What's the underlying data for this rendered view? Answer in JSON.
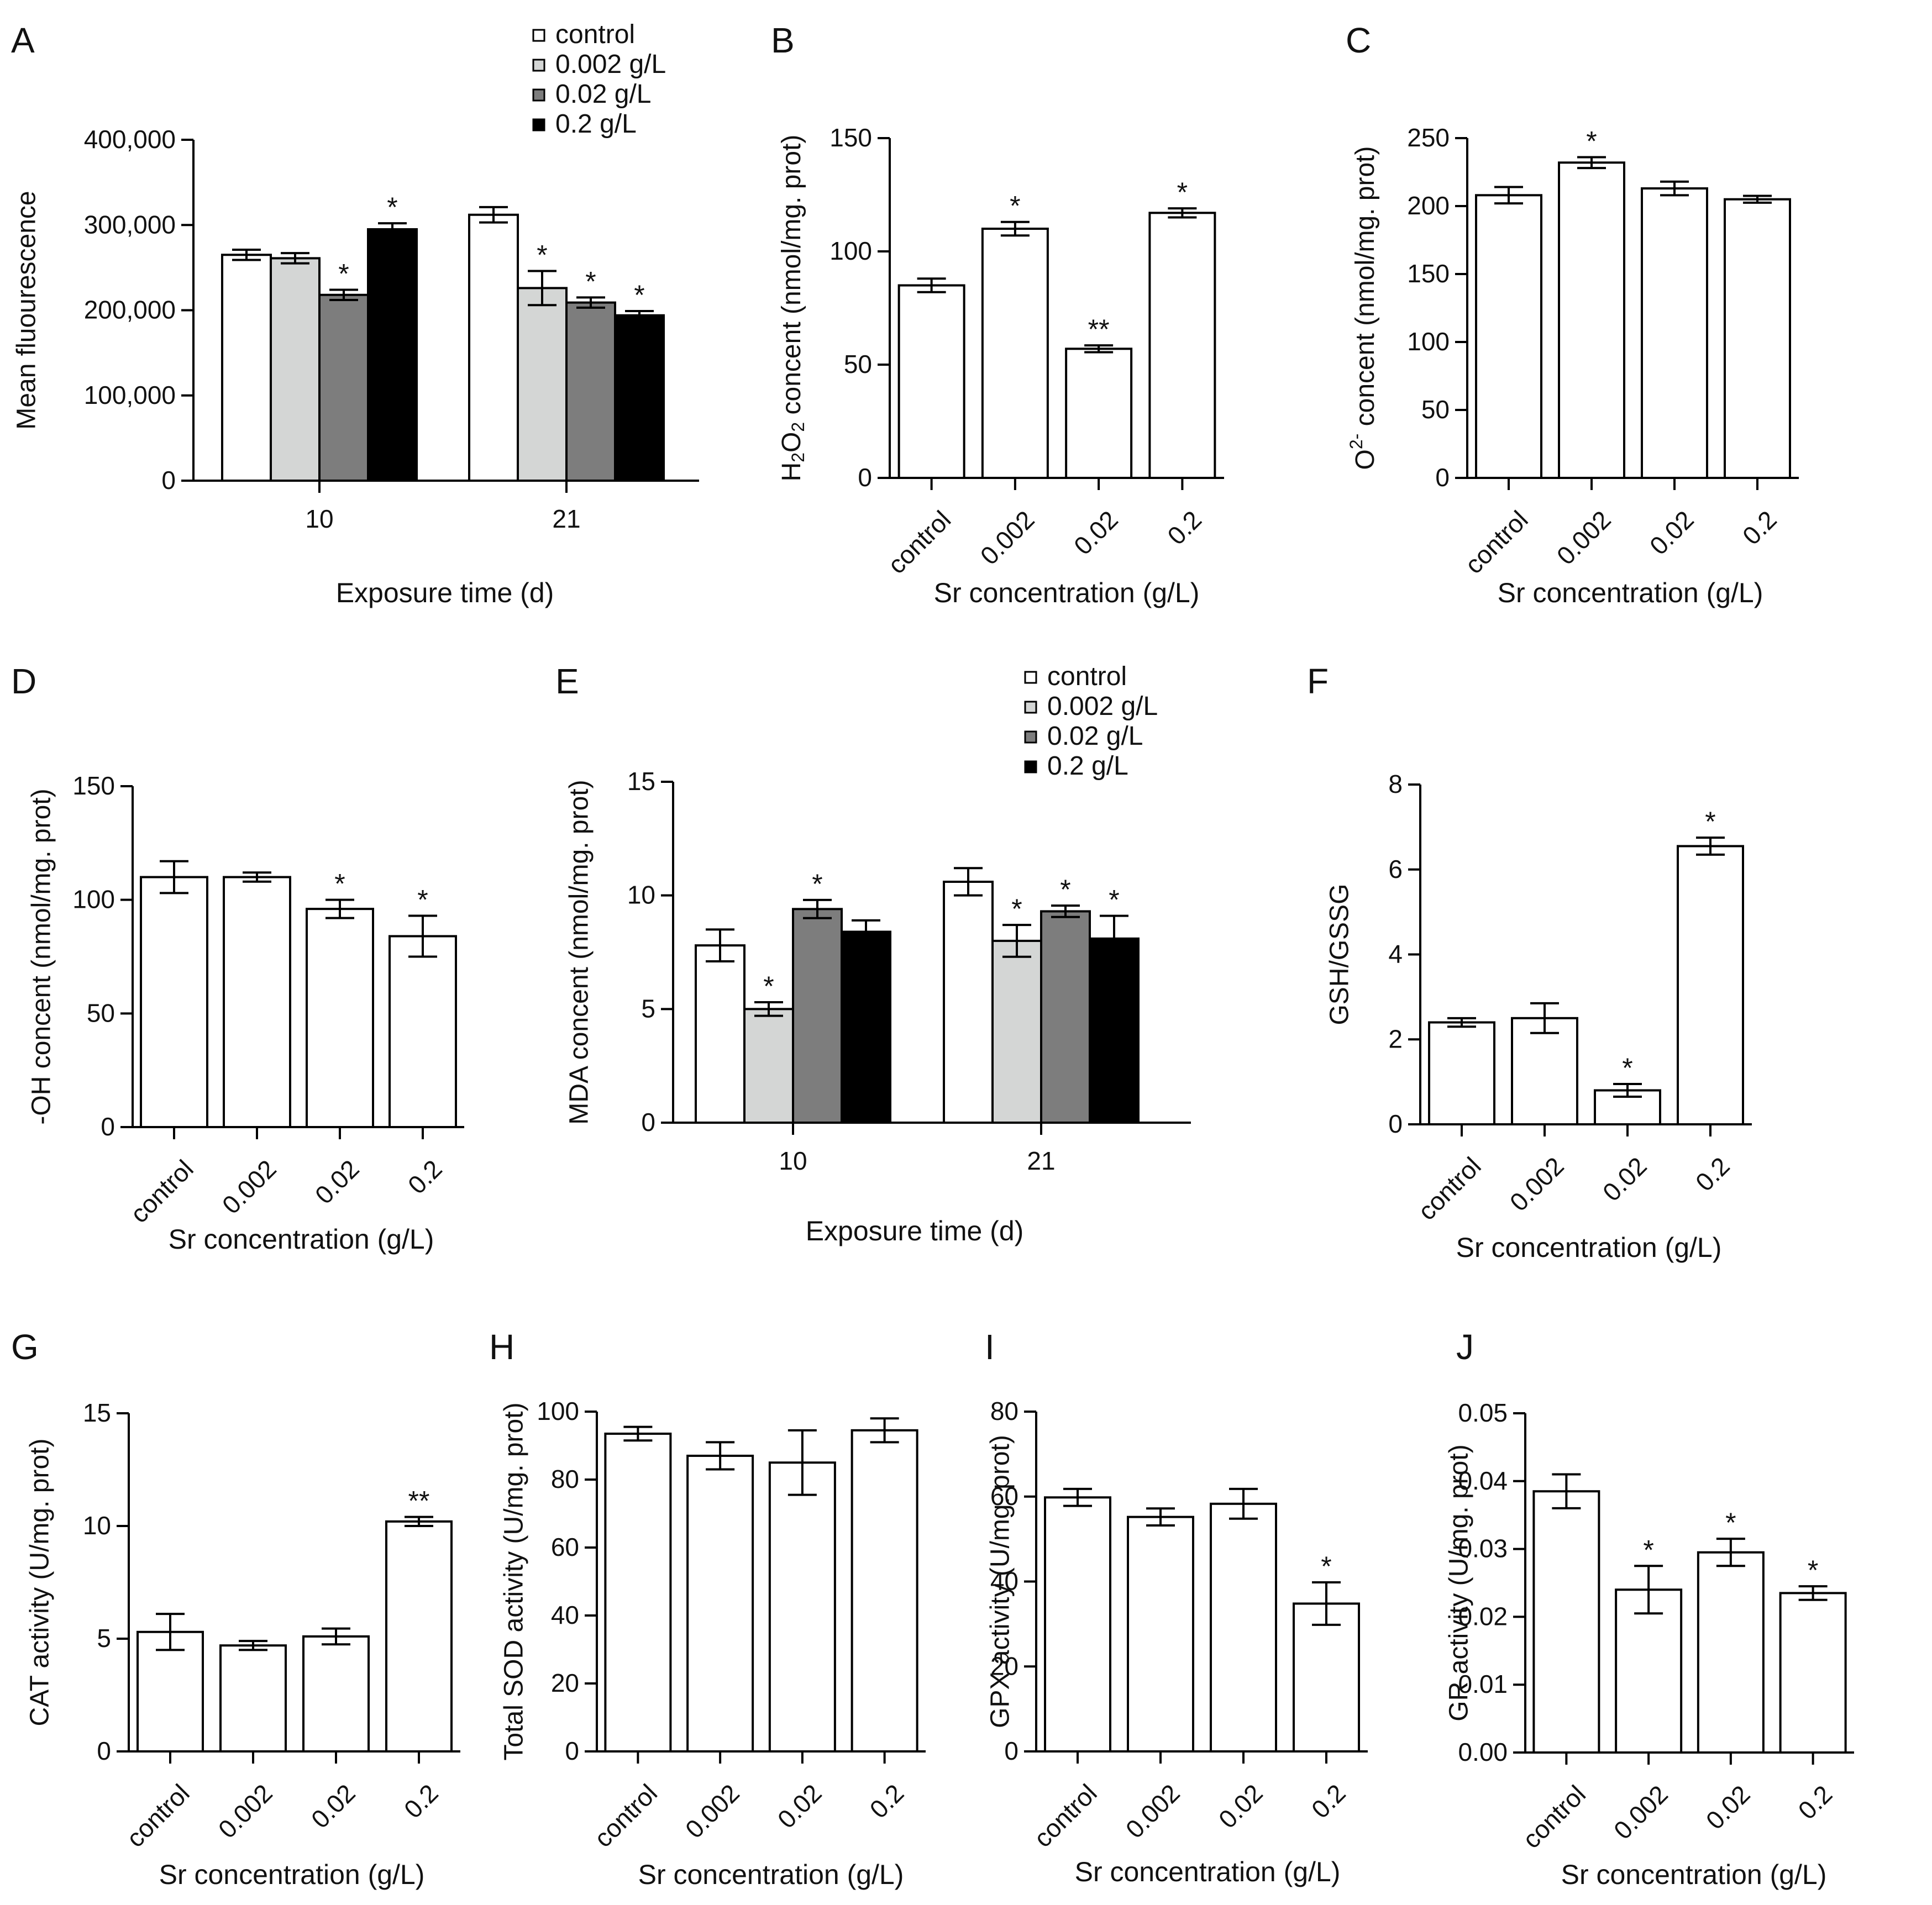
{
  "figure": {
    "colors": {
      "control": "#ffffff",
      "g0002": "#d4d6d5",
      "g002": "#7d7d7d",
      "g02": "#000000",
      "stroke": "#000000",
      "text": "#111111"
    }
  },
  "chart_data": [
    {
      "id": "A",
      "letter": "A",
      "type": "bar",
      "grouped": true,
      "title": "",
      "xlabel": "Exposure time (d)",
      "ylabel": "Mean fluourescence",
      "ylim": [
        0,
        400000
      ],
      "yticks": [
        0,
        100000,
        200000,
        300000,
        400000
      ],
      "ytick_labels": [
        "0",
        "100,000",
        "200,000",
        "300,000",
        "400,000"
      ],
      "categories": [
        "10",
        "21"
      ],
      "legend": [
        "control",
        "0.002 g/L",
        "0.02 g/L",
        "0.2 g/L"
      ],
      "legend_position": "top-right",
      "series": [
        {
          "name": "control",
          "values": [
            265000,
            312000
          ],
          "errors": [
            6000,
            9000
          ],
          "sig": [
            "",
            ""
          ]
        },
        {
          "name": "0.002 g/L",
          "values": [
            261000,
            226000
          ],
          "errors": [
            6000,
            20000
          ],
          "sig": [
            "",
            "*"
          ]
        },
        {
          "name": "0.02 g/L",
          "values": [
            218000,
            209000
          ],
          "errors": [
            6000,
            6000
          ],
          "sig": [
            "*",
            "*"
          ]
        },
        {
          "name": "0.2 g/L",
          "values": [
            295000,
            194000
          ],
          "errors": [
            7000,
            5000
          ],
          "sig": [
            "*",
            "*"
          ]
        }
      ]
    },
    {
      "id": "B",
      "letter": "B",
      "type": "bar",
      "title": "",
      "xlabel": "Sr concentration (g/L)",
      "ylabel": "H2O2 concent (nmol/mg. prot)",
      "ylim": [
        0,
        150
      ],
      "yticks": [
        0,
        50,
        100,
        150
      ],
      "ytick_labels": [
        "0",
        "50",
        "100",
        "150"
      ],
      "categories": [
        "control",
        "0.002",
        "0.02",
        "0.2"
      ],
      "values": [
        85,
        110,
        57,
        117
      ],
      "errors": [
        3,
        3,
        1.5,
        2
      ],
      "sig": [
        "",
        "*",
        "**",
        "*"
      ]
    },
    {
      "id": "C",
      "letter": "C",
      "type": "bar",
      "title": "",
      "xlabel": "Sr concentration (g/L)",
      "ylabel": "O2- concent (nmol/mg. prot)",
      "ylim": [
        0,
        250
      ],
      "yticks": [
        0,
        50,
        100,
        150,
        200,
        250
      ],
      "ytick_labels": [
        "0",
        "50",
        "100",
        "150",
        "200",
        "250"
      ],
      "categories": [
        "control",
        "0.002",
        "0.02",
        "0.2"
      ],
      "values": [
        208,
        232,
        213,
        205
      ],
      "errors": [
        6,
        4,
        5,
        2.5
      ],
      "sig": [
        "",
        "*",
        "",
        ""
      ]
    },
    {
      "id": "D",
      "letter": "D",
      "type": "bar",
      "title": "",
      "xlabel": "Sr concentration (g/L)",
      "ylabel": "-OH concent (nmol/mg. prot)",
      "ylim": [
        0,
        150
      ],
      "yticks": [
        0,
        50,
        100,
        150
      ],
      "ytick_labels": [
        "0",
        "50",
        "100",
        "150"
      ],
      "categories": [
        "control",
        "0.002",
        "0.02",
        "0.2"
      ],
      "values": [
        110,
        110,
        96,
        84
      ],
      "errors": [
        7,
        2,
        4,
        9
      ],
      "sig": [
        "",
        "",
        "*",
        "*"
      ]
    },
    {
      "id": "E",
      "letter": "E",
      "type": "bar",
      "grouped": true,
      "title": "",
      "xlabel": "Exposure time (d)",
      "ylabel": "MDA concent (nmol/mg. prot)",
      "ylim": [
        0,
        15
      ],
      "yticks": [
        0,
        5,
        10,
        15
      ],
      "ytick_labels": [
        "0",
        "5",
        "10",
        "15"
      ],
      "categories": [
        "10",
        "21"
      ],
      "legend": [
        "control",
        "0.002 g/L",
        "0.02 g/L",
        "0.2 g/L"
      ],
      "legend_position": "top-right",
      "series": [
        {
          "name": "control",
          "values": [
            7.8,
            10.6
          ],
          "errors": [
            0.7,
            0.6
          ],
          "sig": [
            "",
            ""
          ]
        },
        {
          "name": "0.002 g/L",
          "values": [
            5.0,
            8.0
          ],
          "errors": [
            0.3,
            0.7
          ],
          "sig": [
            "*",
            "*"
          ]
        },
        {
          "name": "0.02 g/L",
          "values": [
            9.4,
            9.3
          ],
          "errors": [
            0.4,
            0.25
          ],
          "sig": [
            "*",
            "*"
          ]
        },
        {
          "name": "0.2 g/L",
          "values": [
            8.4,
            8.1
          ],
          "errors": [
            0.5,
            1.0
          ],
          "sig": [
            "",
            "*"
          ]
        }
      ]
    },
    {
      "id": "F",
      "letter": "F",
      "type": "bar",
      "title": "",
      "xlabel": "Sr concentration (g/L)",
      "ylabel": "GSH/GSSG",
      "ylim": [
        0,
        8
      ],
      "yticks": [
        0,
        2,
        4,
        6,
        8
      ],
      "ytick_labels": [
        "0",
        "2",
        "4",
        "6",
        "8"
      ],
      "categories": [
        "control",
        "0.002",
        "0.02",
        "0.2"
      ],
      "values": [
        2.4,
        2.5,
        0.8,
        6.55
      ],
      "errors": [
        0.1,
        0.35,
        0.15,
        0.2
      ],
      "sig": [
        "",
        "",
        "*",
        "*"
      ]
    },
    {
      "id": "G",
      "letter": "G",
      "type": "bar",
      "title": "",
      "xlabel": "Sr concentration (g/L)",
      "ylabel": "CAT activity (U/mg. prot)",
      "ylim": [
        0,
        15
      ],
      "yticks": [
        0,
        5,
        10,
        15
      ],
      "ytick_labels": [
        "0",
        "5",
        "10",
        "15"
      ],
      "categories": [
        "control",
        "0.002",
        "0.02",
        "0.2"
      ],
      "values": [
        5.3,
        4.7,
        5.1,
        10.2
      ],
      "errors": [
        0.8,
        0.2,
        0.35,
        0.2
      ],
      "sig": [
        "",
        "",
        "",
        "**"
      ]
    },
    {
      "id": "H",
      "letter": "H",
      "type": "bar",
      "title": "",
      "xlabel": "Sr concentration (g/L)",
      "ylabel": "Total SOD activity (U/mg. prot)",
      "ylim": [
        0,
        100
      ],
      "yticks": [
        0,
        20,
        40,
        60,
        80,
        100
      ],
      "ytick_labels": [
        "0",
        "20",
        "40",
        "60",
        "80",
        "100"
      ],
      "categories": [
        "control",
        "0.002",
        "0.02",
        "0.2"
      ],
      "values": [
        93.5,
        87,
        85,
        94.5
      ],
      "errors": [
        2,
        4,
        9.5,
        3.5
      ],
      "sig": [
        "",
        "",
        "",
        ""
      ]
    },
    {
      "id": "I",
      "letter": "I",
      "type": "bar",
      "title": "",
      "xlabel": "Sr concentration (g/L)",
      "ylabel": "GPX activity (U/mg. prot)",
      "ylim": [
        0,
        80
      ],
      "yticks": [
        0,
        20,
        40,
        60,
        80
      ],
      "ytick_labels": [
        "0",
        "20",
        "40",
        "60",
        "80"
      ],
      "categories": [
        "control",
        "0.002",
        "0.02",
        "0.2"
      ],
      "values": [
        59.8,
        55.2,
        58.3,
        34.8
      ],
      "errors": [
        2,
        2,
        3.5,
        5
      ],
      "sig": [
        "",
        "",
        "",
        "*"
      ]
    },
    {
      "id": "J",
      "letter": "J",
      "type": "bar",
      "title": "",
      "xlabel": "Sr concentration (g/L)",
      "ylabel": "GR activity (U/mg. prot)",
      "ylim": [
        0,
        0.05
      ],
      "yticks": [
        0,
        0.01,
        0.02,
        0.03,
        0.04,
        0.05
      ],
      "ytick_labels": [
        "0.00",
        "0.01",
        "0.02",
        "0.03",
        "0.04",
        "0.05"
      ],
      "categories": [
        "control",
        "0.002",
        "0.02",
        "0.2"
      ],
      "values": [
        0.0385,
        0.024,
        0.0295,
        0.0235
      ],
      "errors": [
        0.0025,
        0.0035,
        0.002,
        0.001
      ],
      "sig": [
        "",
        "*",
        "*",
        "*"
      ]
    }
  ]
}
